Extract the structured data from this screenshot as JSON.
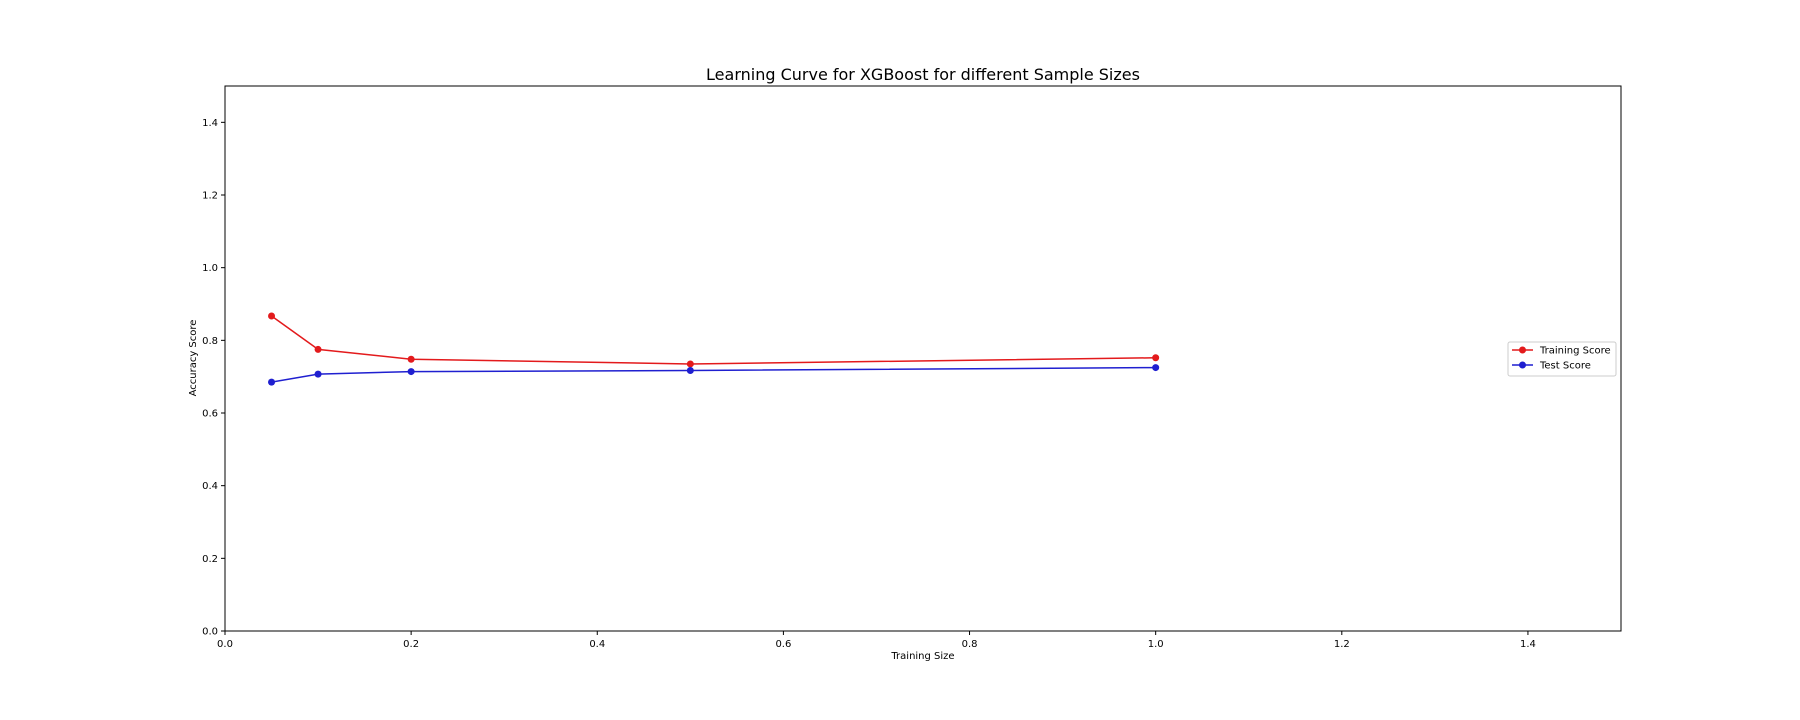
{
  "chart_data": {
    "type": "line",
    "title": "Learning Curve for XGBoost for different Sample Sizes",
    "xlabel": "Training Size",
    "ylabel": "Accuracy Score",
    "xlim": [
      0,
      1.5
    ],
    "ylim": [
      0,
      1.5
    ],
    "xticks": [
      "0.0",
      "0.2",
      "0.4",
      "0.6",
      "0.8",
      "1.0",
      "1.2",
      "1.4"
    ],
    "yticks": [
      "0.0",
      "0.2",
      "0.4",
      "0.6",
      "0.8",
      "1.0",
      "1.2",
      "1.4"
    ],
    "grid": false,
    "legend_position": "right",
    "x": [
      0.05,
      0.1,
      0.2,
      0.5,
      1.0
    ],
    "series": [
      {
        "name": "Training Score",
        "color": "#e31a1c",
        "values": [
          0.867,
          0.775,
          0.748,
          0.735,
          0.752
        ]
      },
      {
        "name": "Test Score",
        "color": "#1f1fd0",
        "values": [
          0.685,
          0.707,
          0.714,
          0.717,
          0.725
        ]
      }
    ]
  }
}
